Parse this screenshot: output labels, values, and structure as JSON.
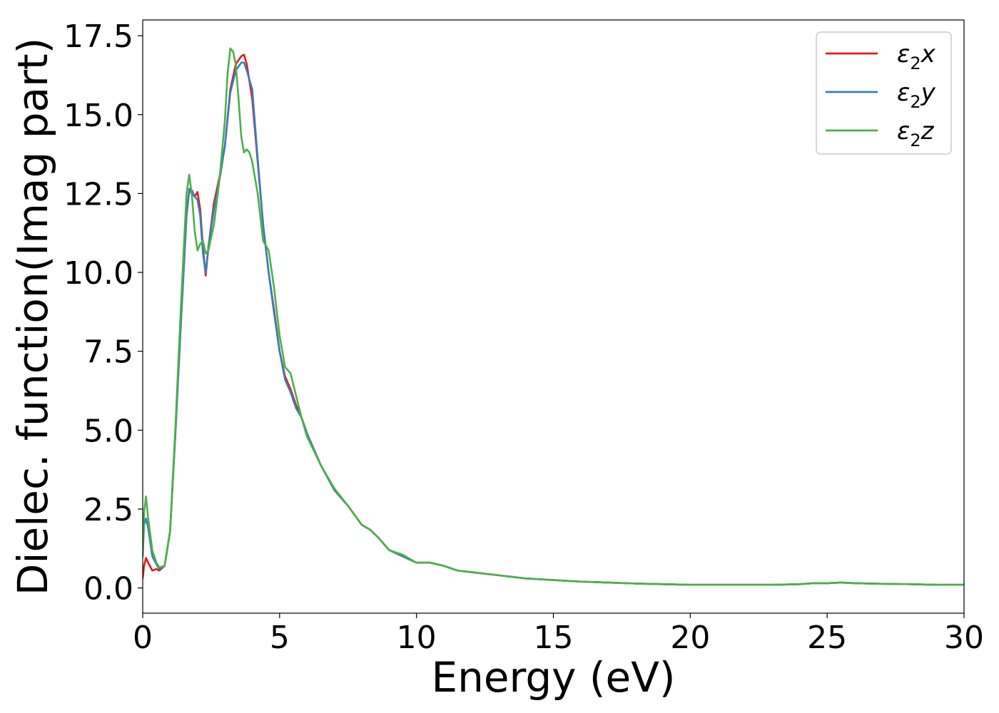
{
  "chart_data": {
    "type": "line",
    "xlabel": "Energy (eV)",
    "ylabel": "Dielec. function(Imag part)",
    "xlim": [
      0,
      30
    ],
    "ylim": [
      -0.8,
      18.0
    ],
    "xticks": [
      0,
      5,
      10,
      15,
      20,
      25,
      30
    ],
    "xtick_labels": [
      "0",
      "5",
      "10",
      "15",
      "20",
      "25",
      "30"
    ],
    "yticks": [
      0.0,
      2.5,
      5.0,
      7.5,
      10.0,
      12.5,
      15.0,
      17.5
    ],
    "ytick_labels": [
      "0.0",
      "2.5",
      "5.0",
      "7.5",
      "10.0",
      "12.5",
      "15.0",
      "17.5"
    ],
    "grid": false,
    "legend_position": "top-right",
    "series": [
      {
        "name": "ε₂x",
        "legend_base": "ε",
        "legend_sub": "2",
        "legend_var": "x",
        "color": "#e41a1c",
        "x": [
          0.0,
          0.05,
          0.12,
          0.2,
          0.35,
          0.5,
          0.6,
          0.8,
          1.0,
          1.2,
          1.4,
          1.6,
          1.7,
          1.8,
          1.9,
          2.0,
          2.1,
          2.2,
          2.3,
          2.4,
          2.6,
          2.8,
          3.0,
          3.2,
          3.4,
          3.6,
          3.7,
          3.8,
          4.0,
          4.2,
          4.4,
          4.6,
          4.8,
          5.0,
          5.2,
          5.4,
          5.6,
          5.8,
          6.0,
          6.5,
          7.0,
          7.5,
          8.0,
          8.3,
          8.6,
          9.0,
          9.5,
          10.0,
          10.5,
          11.0,
          11.5,
          12.0,
          13.0,
          14.0,
          15.0,
          16.0,
          17.0,
          18.0,
          19.0,
          20.0,
          21.0,
          22.0,
          23.0,
          24.0,
          24.5,
          25.0,
          25.5,
          26.0,
          27.0,
          28.0,
          29.0,
          30.0
        ],
        "values": [
          0.3,
          0.7,
          0.95,
          0.8,
          0.55,
          0.6,
          0.55,
          0.7,
          1.8,
          5.0,
          8.5,
          11.8,
          12.6,
          12.5,
          12.4,
          12.55,
          12.0,
          10.8,
          9.9,
          10.8,
          12.2,
          13.0,
          14.0,
          15.8,
          16.6,
          16.85,
          16.9,
          16.6,
          15.5,
          13.5,
          11.5,
          10.0,
          8.8,
          7.5,
          6.7,
          6.3,
          5.8,
          5.4,
          4.9,
          3.9,
          3.1,
          2.6,
          2.0,
          1.85,
          1.6,
          1.2,
          1.0,
          0.8,
          0.8,
          0.7,
          0.55,
          0.5,
          0.4,
          0.3,
          0.25,
          0.2,
          0.17,
          0.14,
          0.12,
          0.1,
          0.1,
          0.1,
          0.1,
          0.12,
          0.15,
          0.15,
          0.17,
          0.15,
          0.13,
          0.12,
          0.1,
          0.1
        ]
      },
      {
        "name": "ε₂y",
        "legend_base": "ε",
        "legend_sub": "2",
        "legend_var": "y",
        "color": "#377eb8",
        "x": [
          0.0,
          0.05,
          0.12,
          0.2,
          0.35,
          0.5,
          0.6,
          0.8,
          1.0,
          1.2,
          1.4,
          1.6,
          1.7,
          1.8,
          1.9,
          2.0,
          2.1,
          2.2,
          2.3,
          2.4,
          2.6,
          2.8,
          3.0,
          3.2,
          3.4,
          3.6,
          3.7,
          3.8,
          4.0,
          4.2,
          4.4,
          4.6,
          4.8,
          5.0,
          5.2,
          5.4,
          5.6,
          5.8,
          6.0,
          6.5,
          7.0,
          7.5,
          8.0,
          8.3,
          8.6,
          9.0,
          9.5,
          10.0,
          10.5,
          11.0,
          11.5,
          12.0,
          13.0,
          14.0,
          15.0,
          16.0,
          17.0,
          18.0,
          19.0,
          20.0,
          21.0,
          22.0,
          23.0,
          24.0,
          24.5,
          25.0,
          25.5,
          26.0,
          27.0,
          28.0,
          29.0,
          30.0
        ],
        "values": [
          1.0,
          2.0,
          2.2,
          1.9,
          1.0,
          0.75,
          0.6,
          0.7,
          1.8,
          5.0,
          8.5,
          11.8,
          12.65,
          12.6,
          12.4,
          12.3,
          11.8,
          10.6,
          10.0,
          10.8,
          12.0,
          12.9,
          14.0,
          15.7,
          16.4,
          16.65,
          16.65,
          16.4,
          15.8,
          13.6,
          11.5,
          10.0,
          8.7,
          7.5,
          6.6,
          6.2,
          5.7,
          5.4,
          4.9,
          3.9,
          3.1,
          2.6,
          2.0,
          1.85,
          1.6,
          1.2,
          1.0,
          0.8,
          0.8,
          0.7,
          0.55,
          0.5,
          0.4,
          0.3,
          0.25,
          0.2,
          0.17,
          0.14,
          0.12,
          0.1,
          0.1,
          0.1,
          0.1,
          0.12,
          0.15,
          0.15,
          0.17,
          0.15,
          0.13,
          0.12,
          0.1,
          0.1
        ]
      },
      {
        "name": "ε₂z",
        "legend_base": "ε",
        "legend_sub": "2",
        "legend_var": "z",
        "color": "#4daf4a",
        "x": [
          0.0,
          0.05,
          0.12,
          0.2,
          0.35,
          0.5,
          0.6,
          0.8,
          1.0,
          1.2,
          1.4,
          1.6,
          1.7,
          1.8,
          1.9,
          2.0,
          2.1,
          2.2,
          2.3,
          2.4,
          2.6,
          2.8,
          3.0,
          3.1,
          3.2,
          3.3,
          3.4,
          3.5,
          3.6,
          3.7,
          3.8,
          3.9,
          4.0,
          4.2,
          4.4,
          4.6,
          4.8,
          5.0,
          5.2,
          5.4,
          5.6,
          5.8,
          6.0,
          6.5,
          7.0,
          7.5,
          8.0,
          8.3,
          8.6,
          9.0,
          9.5,
          10.0,
          10.5,
          11.0,
          11.5,
          12.0,
          13.0,
          14.0,
          15.0,
          16.0,
          17.0,
          18.0,
          19.0,
          20.0,
          21.0,
          22.0,
          23.0,
          24.0,
          24.5,
          25.0,
          25.5,
          26.0,
          27.0,
          28.0,
          29.0,
          30.0
        ],
        "values": [
          1.2,
          2.4,
          2.9,
          2.2,
          1.2,
          0.8,
          0.65,
          0.7,
          1.8,
          5.2,
          9.0,
          12.5,
          13.1,
          12.4,
          11.3,
          10.7,
          10.9,
          11.0,
          10.6,
          10.7,
          11.5,
          12.9,
          14.8,
          16.3,
          17.1,
          17.0,
          16.6,
          15.5,
          14.3,
          13.8,
          13.9,
          13.8,
          13.5,
          12.5,
          11.0,
          10.7,
          9.5,
          8.0,
          7.0,
          6.8,
          6.1,
          5.4,
          4.8,
          3.9,
          3.15,
          2.6,
          2.0,
          1.85,
          1.6,
          1.2,
          1.05,
          0.8,
          0.8,
          0.7,
          0.55,
          0.5,
          0.4,
          0.3,
          0.25,
          0.2,
          0.17,
          0.14,
          0.12,
          0.1,
          0.1,
          0.1,
          0.1,
          0.12,
          0.15,
          0.15,
          0.17,
          0.15,
          0.13,
          0.12,
          0.1,
          0.1
        ]
      }
    ]
  }
}
